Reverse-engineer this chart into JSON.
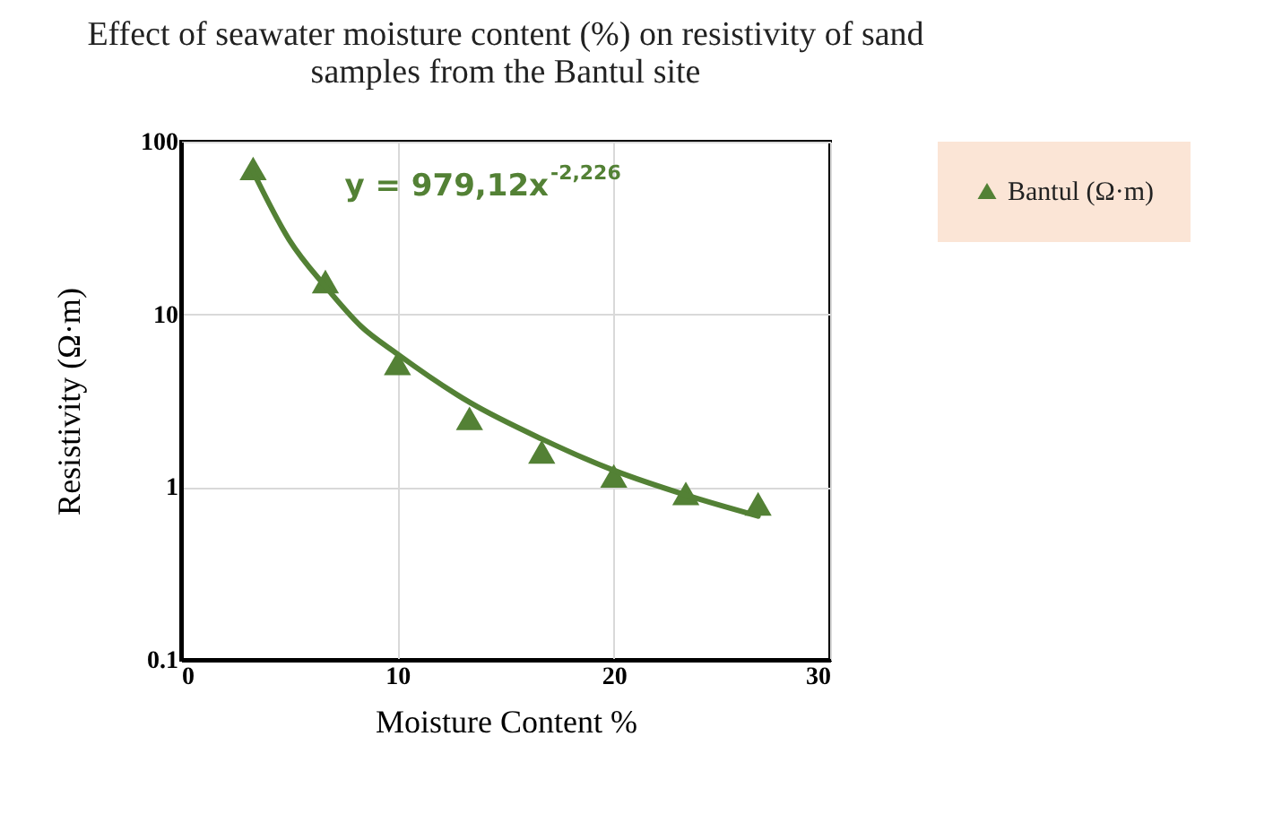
{
  "chart_data": {
    "type": "scatter",
    "title": "Effect of seawater moisture content (%) on resistivity  of sand samples from the Bantul site",
    "xlabel": "Moisture Content %",
    "ylabel": "Resistivity (Ω·m)",
    "x": [
      3.33,
      6.67,
      10,
      13.33,
      16.67,
      20,
      23.33,
      26.67
    ],
    "series": [
      {
        "name": "Bantul (Ω·m)",
        "color": "#538135",
        "marker": "triangle",
        "values": [
          70,
          15.5,
          5.2,
          2.5,
          1.6,
          1.16,
          0.92,
          0.8
        ]
      },
      {
        "type": "line",
        "color": "#538135",
        "x": [
          3.33,
          5,
          6.67,
          8.33,
          10,
          13.33,
          16.67,
          20,
          23.33,
          26.67
        ],
        "values": [
          67,
          27,
          14.5,
          8.5,
          5.9,
          3.1,
          1.9,
          1.25,
          0.9,
          0.68
        ]
      }
    ],
    "xlim": [
      0,
      30
    ],
    "xticks": [
      0,
      10,
      20,
      30
    ],
    "ylim": [
      0.1,
      100
    ],
    "yticks": [
      0.1,
      1,
      10,
      100
    ],
    "log": "y",
    "grid": true,
    "legend": "right",
    "annotations": [
      "y = 979,12x$^{-2,226}$"
    ]
  }
}
